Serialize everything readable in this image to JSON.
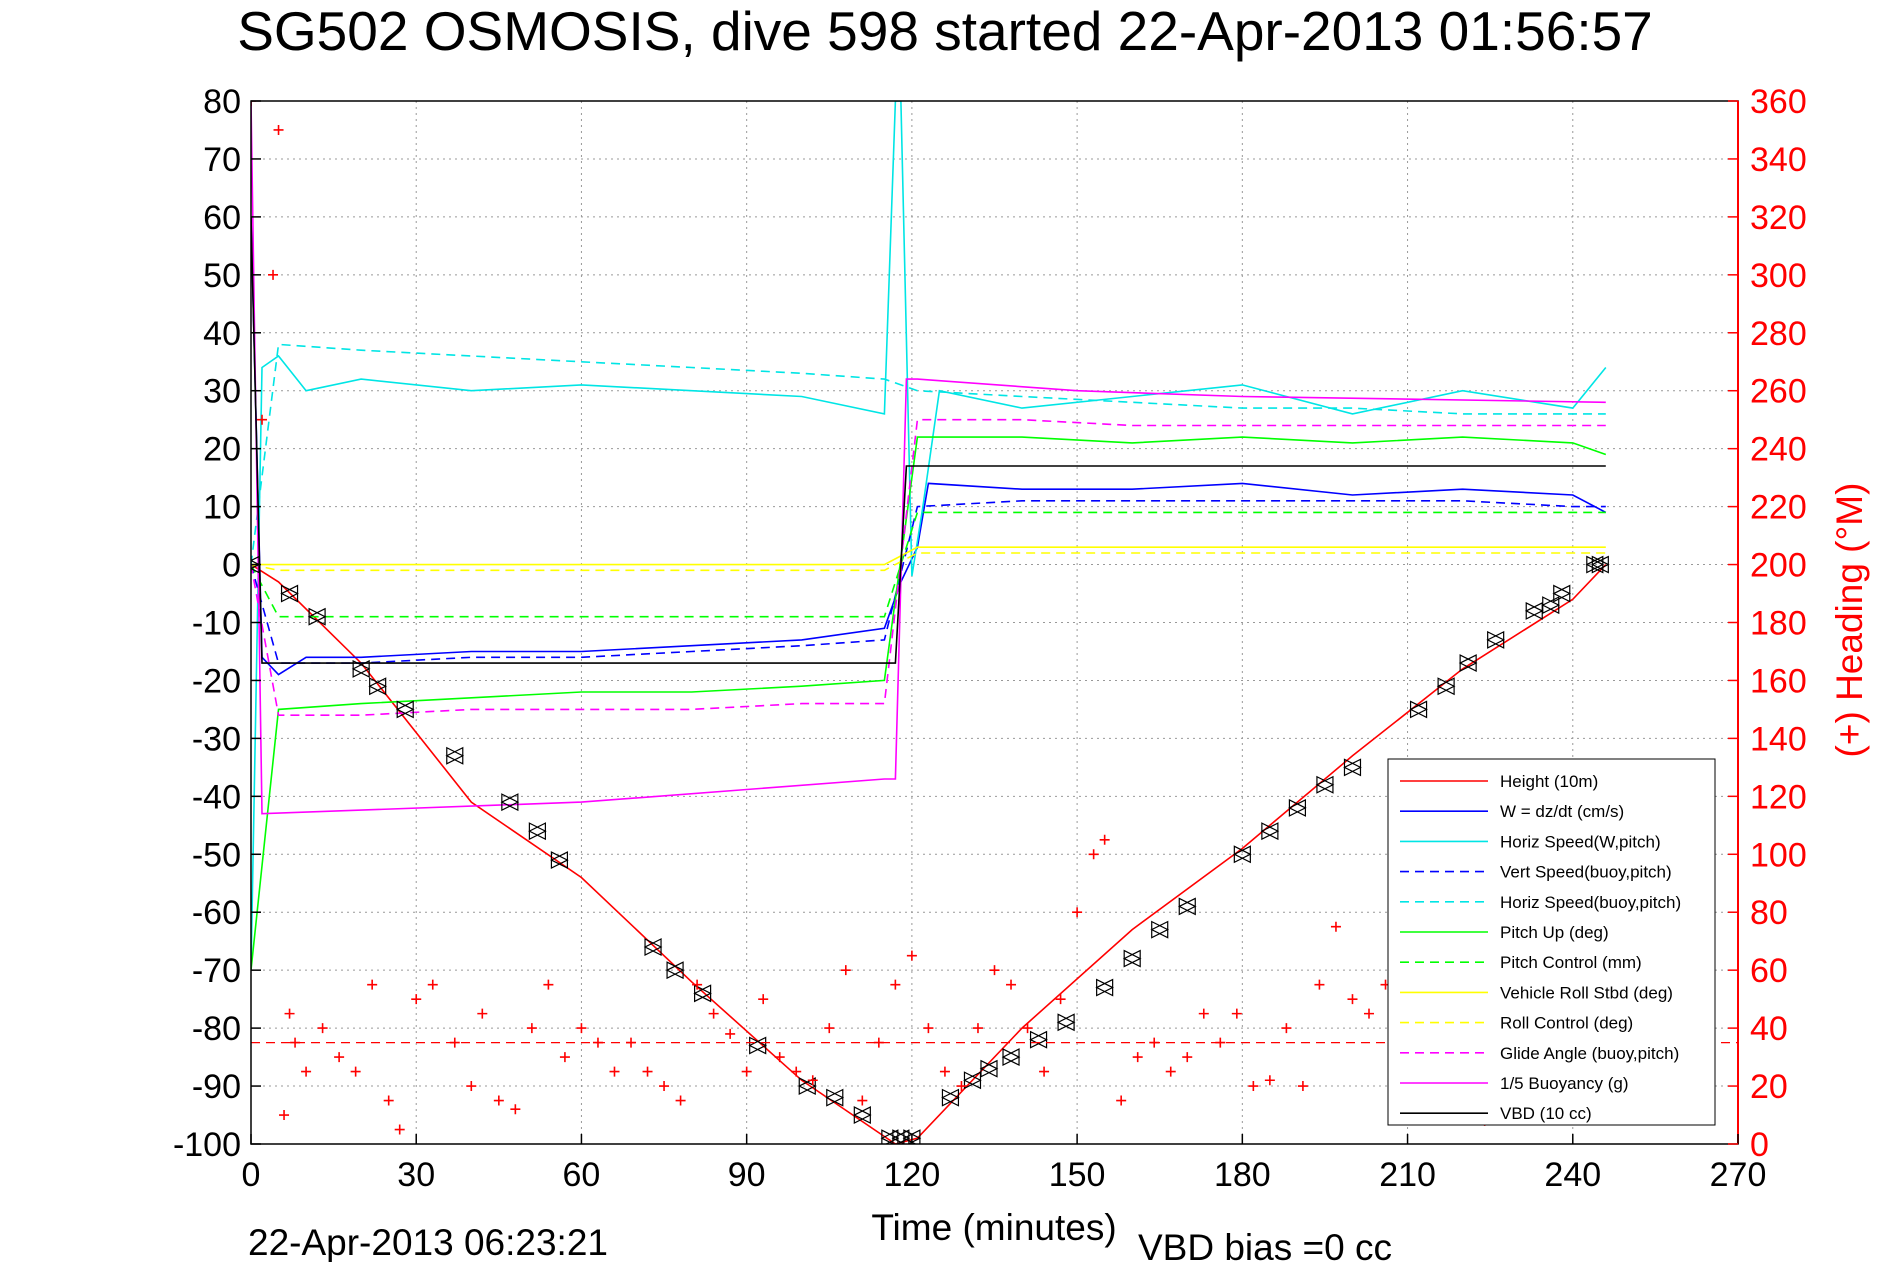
{
  "chart_data": {
    "type": "line",
    "title": "SG502 OSMOSIS, dive 598 started 22-Apr-2013 01:56:57",
    "xlabel": "Time (minutes)",
    "ylabel_right": "(+) Heading (°M)",
    "footer_left": "22-Apr-2013 06:23:21",
    "footer_right": "VBD bias =0 cc",
    "xlim": [
      0,
      270
    ],
    "ylim": [
      -100,
      80
    ],
    "ylim_right": [
      0,
      360
    ],
    "x_ticks": [
      "0",
      "30",
      "60",
      "90",
      "120",
      "150",
      "180",
      "210",
      "240",
      "270"
    ],
    "y_ticks": [
      "80",
      "70",
      "60",
      "50",
      "40",
      "30",
      "20",
      "10",
      "0",
      "-10",
      "-20",
      "-30",
      "-40",
      "-50",
      "-60",
      "-70",
      "-80",
      "-90",
      "-100"
    ],
    "y_right_ticks": [
      "360",
      "340",
      "320",
      "300",
      "280",
      "260",
      "240",
      "220",
      "200",
      "180",
      "160",
      "140",
      "120",
      "100",
      "80",
      "60",
      "40",
      "20",
      "0"
    ],
    "grid": true,
    "legend_position": "bottom-right",
    "series": [
      {
        "name": "Height (10m)",
        "color": "#ff0000",
        "style": "solid",
        "x": [
          0,
          5,
          20,
          40,
          60,
          80,
          100,
          117,
          121,
          140,
          160,
          180,
          200,
          220,
          240,
          246
        ],
        "y": [
          0,
          -3,
          -17,
          -41,
          -54,
          -72,
          -89,
          -100,
          -99,
          -80,
          -63,
          -49,
          -33,
          -18,
          -6,
          0
        ]
      },
      {
        "name": "W = dz/dt (cm/s)",
        "color": "#0000ff",
        "style": "solid",
        "x": [
          0,
          2,
          5,
          10,
          20,
          40,
          60,
          80,
          100,
          115,
          118,
          121,
          123,
          140,
          160,
          180,
          200,
          220,
          240,
          246
        ],
        "y": [
          60,
          -16,
          -19,
          -16,
          -16,
          -15,
          -15,
          -14,
          -13,
          -11,
          -3,
          3,
          14,
          13,
          13,
          14,
          12,
          13,
          12,
          9
        ]
      },
      {
        "name": "Horiz Speed(W,pitch)",
        "color": "#00e5e5",
        "style": "solid",
        "x": [
          0,
          2,
          5,
          10,
          20,
          40,
          60,
          80,
          100,
          115,
          117,
          118,
          120,
          122,
          125,
          140,
          160,
          180,
          200,
          220,
          240,
          246
        ],
        "y": [
          -70,
          34,
          36,
          30,
          32,
          30,
          31,
          30,
          29,
          26,
          80,
          80,
          -2,
          10,
          30,
          27,
          29,
          31,
          26,
          30,
          27,
          34
        ]
      },
      {
        "name": "Vert Speed(buoy,pitch)",
        "color": "#0000ff",
        "style": "dashed",
        "x": [
          0,
          5,
          20,
          40,
          60,
          80,
          100,
          115,
          121,
          140,
          160,
          180,
          200,
          220,
          240,
          246
        ],
        "y": [
          0,
          -17,
          -17,
          -16,
          -16,
          -15,
          -14,
          -13,
          10,
          11,
          11,
          11,
          11,
          11,
          10,
          10
        ]
      },
      {
        "name": "Horiz Speed(buoy,pitch)",
        "color": "#00e5e5",
        "style": "dashed",
        "x": [
          0,
          5,
          20,
          40,
          60,
          80,
          100,
          115,
          121,
          140,
          160,
          180,
          200,
          220,
          240,
          246
        ],
        "y": [
          0,
          38,
          37,
          36,
          35,
          34,
          33,
          32,
          30,
          29,
          28,
          27,
          27,
          26,
          26,
          26
        ]
      },
      {
        "name": "Pitch Up (deg)",
        "color": "#00ff00",
        "style": "solid",
        "x": [
          0,
          5,
          20,
          40,
          60,
          80,
          100,
          115,
          121,
          140,
          160,
          180,
          200,
          220,
          240,
          246
        ],
        "y": [
          -70,
          -25,
          -24,
          -23,
          -22,
          -22,
          -21,
          -20,
          22,
          22,
          21,
          22,
          21,
          22,
          21,
          19
        ]
      },
      {
        "name": "Pitch Control (mm)",
        "color": "#00ff00",
        "style": "dashed",
        "x": [
          0,
          5,
          20,
          40,
          60,
          80,
          100,
          115,
          121,
          140,
          160,
          180,
          200,
          220,
          240,
          246
        ],
        "y": [
          0,
          -9,
          -9,
          -9,
          -9,
          -9,
          -9,
          -9,
          9,
          9,
          9,
          9,
          9,
          9,
          9,
          9
        ]
      },
      {
        "name": "Vehicle Roll Stbd (deg)",
        "color": "#ffff00",
        "style": "solid",
        "x": [
          0,
          5,
          20,
          40,
          60,
          80,
          100,
          115,
          121,
          140,
          160,
          180,
          200,
          220,
          240,
          246
        ],
        "y": [
          0,
          0,
          0,
          0,
          0,
          0,
          0,
          0,
          3,
          3,
          3,
          3,
          3,
          3,
          3,
          3
        ]
      },
      {
        "name": "Roll Control (deg)",
        "color": "#ffff00",
        "style": "dashed",
        "x": [
          0,
          5,
          20,
          40,
          60,
          80,
          100,
          115,
          121,
          140,
          160,
          180,
          200,
          220,
          240,
          246
        ],
        "y": [
          0,
          -1,
          -1,
          -1,
          -1,
          -1,
          -1,
          -1,
          2,
          2,
          2,
          2,
          2,
          2,
          2,
          2
        ]
      },
      {
        "name": "Glide Angle (buoy,pitch)",
        "color": "#ff00ff",
        "style": "dashed",
        "x": [
          0,
          5,
          20,
          40,
          60,
          80,
          100,
          115,
          121,
          140,
          160,
          180,
          200,
          220,
          240,
          246
        ],
        "y": [
          0,
          -26,
          -26,
          -25,
          -25,
          -25,
          -24,
          -24,
          25,
          25,
          24,
          24,
          24,
          24,
          24,
          24
        ]
      },
      {
        "name": "1/5 Buoyancy (g)",
        "color": "#ff00ff",
        "style": "solid",
        "x": [
          0,
          2,
          60,
          115,
          117,
          119,
          121,
          150,
          180,
          246
        ],
        "y": [
          80,
          -43,
          -41,
          -37,
          -37,
          32,
          32,
          30,
          29,
          28
        ]
      },
      {
        "name": "VBD (10 cc)",
        "color": "#000000",
        "style": "solid",
        "x": [
          0,
          2,
          60,
          115,
          117,
          119,
          121,
          150,
          180,
          246
        ],
        "y": [
          60,
          -17,
          -17,
          -17,
          -17,
          17,
          17,
          17,
          17,
          17
        ]
      }
    ],
    "heading": {
      "name": "(+) Heading",
      "color": "#ff0000",
      "marker": "+",
      "axis": "right",
      "mean_dashed": 35,
      "x": [
        0,
        2,
        4,
        5,
        6,
        7,
        8,
        10,
        13,
        16,
        19,
        22,
        25,
        27,
        30,
        33,
        37,
        40,
        42,
        45,
        48,
        51,
        54,
        57,
        60,
        63,
        66,
        69,
        72,
        75,
        78,
        81,
        84,
        87,
        90,
        93,
        96,
        99,
        102,
        105,
        108,
        111,
        114,
        117,
        120,
        123,
        126,
        129,
        132,
        135,
        138,
        141,
        144,
        147,
        150,
        153,
        155,
        158,
        161,
        164,
        167,
        170,
        173,
        176,
        179,
        182,
        185,
        188,
        191,
        194,
        197,
        200,
        203,
        206,
        209,
        212,
        215,
        218,
        221,
        224
      ],
      "y": [
        360,
        250,
        300,
        350,
        10,
        45,
        35,
        25,
        40,
        30,
        25,
        55,
        15,
        5,
        50,
        55,
        35,
        20,
        45,
        15,
        12,
        40,
        55,
        30,
        40,
        35,
        25,
        35,
        25,
        20,
        15,
        55,
        45,
        38,
        25,
        50,
        30,
        25,
        22,
        40,
        60,
        15,
        35,
        55,
        65,
        40,
        25,
        20,
        40,
        60,
        55,
        40,
        25,
        50,
        80,
        100,
        105,
        15,
        30,
        35,
        25,
        30,
        45,
        35,
        45,
        20,
        22,
        40,
        20,
        55,
        75,
        50,
        45,
        55,
        40,
        30,
        25,
        20,
        12,
        8
      ]
    },
    "markers": {
      "name": "Height sample points",
      "color": "#000000",
      "x": [
        0,
        7,
        12,
        20,
        23,
        28,
        37,
        47,
        52,
        56,
        73,
        77,
        82,
        92,
        101,
        106,
        111,
        116,
        118,
        120,
        127,
        131,
        134,
        138,
        143,
        148,
        155,
        160,
        165,
        170,
        180,
        185,
        190,
        195,
        200,
        212,
        217,
        221,
        226,
        233,
        236,
        238,
        244,
        245
      ],
      "y": [
        0,
        -5,
        -9,
        -18,
        -21,
        -25,
        -33,
        -41,
        -46,
        -51,
        -66,
        -70,
        -74,
        -83,
        -90,
        -92,
        -95,
        -99,
        -99,
        -99,
        -92,
        -89,
        -87,
        -85,
        -82,
        -79,
        -73,
        -68,
        -63,
        -59,
        -50,
        -46,
        -42,
        -38,
        -35,
        -25,
        -21,
        -17,
        -13,
        -8,
        -7,
        -5,
        0,
        0
      ]
    },
    "legend": [
      "Height (10m)",
      "W = dz/dt (cm/s)",
      "Horiz Speed(W,pitch)",
      "Vert Speed(buoy,pitch)",
      "Horiz Speed(buoy,pitch)",
      "Pitch Up (deg)",
      "Pitch Control (mm)",
      "Vehicle Roll Stbd (deg)",
      "Roll Control (deg)",
      "Glide Angle (buoy,pitch)",
      "1/5 Buoyancy (g)",
      "VBD (10 cc)"
    ]
  }
}
